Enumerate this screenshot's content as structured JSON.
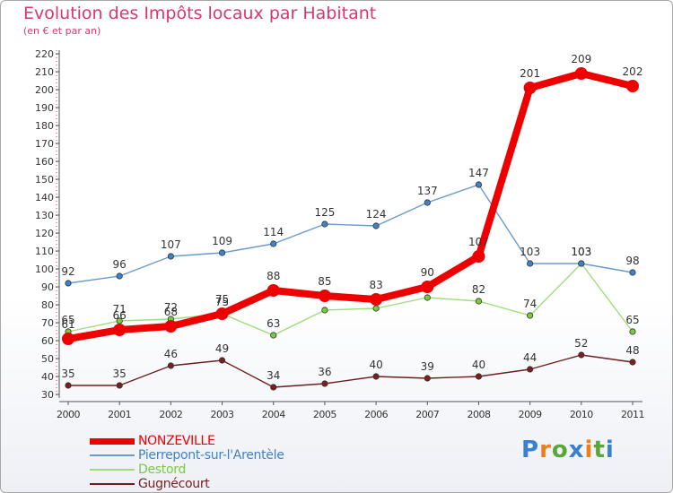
{
  "title": "Evolution des Impôts locaux par Habitant",
  "subtitle": "(en € et par an)",
  "logo": {
    "text": "Proxiti",
    "letter_colors": [
      "#3b7fd1",
      "#f07d1a",
      "#5aa63a",
      "#3b7fd1",
      "#f07d1a",
      "#5aa63a",
      "#3b7fd1"
    ]
  },
  "chart_data": {
    "type": "line",
    "title": "Evolution des Impôts locaux par Habitant",
    "subtitle": "(en € et par an)",
    "x": [
      "2000",
      "2001",
      "2002",
      "2003",
      "2004",
      "2005",
      "2006",
      "2007",
      "2008",
      "2009",
      "2010",
      "2011"
    ],
    "ylim": [
      30,
      220
    ],
    "yticks": [
      30,
      40,
      50,
      60,
      70,
      80,
      90,
      100,
      110,
      120,
      130,
      140,
      150,
      160,
      170,
      180,
      190,
      200,
      210,
      220
    ],
    "grid": false,
    "legend": "bottom-left",
    "series": [
      {
        "name": "Gugnécourt",
        "color": "#6b1f1f",
        "marker_color": "#7a2020",
        "values": [
          35,
          35,
          46,
          49,
          34,
          36,
          40,
          39,
          40,
          44,
          52,
          48
        ],
        "labels": [
          "35",
          "35",
          "46",
          "49",
          "34",
          "36",
          "40",
          "39",
          "40",
          "44",
          "52",
          "48"
        ]
      },
      {
        "name": "Destord",
        "color": "#9fdc7c",
        "marker_color": "#7acb3c",
        "values": [
          65,
          71,
          72,
          75,
          63,
          77,
          78,
          84,
          82,
          74,
          103,
          65
        ],
        "labels": [
          "65",
          "71",
          "72",
          "75",
          "63",
          "",
          "",
          "",
          "82",
          "74",
          "103",
          "65"
        ]
      },
      {
        "name": "Pierrepont-sur-l'Arentèle",
        "color": "#6a9bcc",
        "marker_color": "#3f82c7",
        "values": [
          92,
          96,
          107,
          109,
          114,
          125,
          124,
          137,
          147,
          103,
          103,
          98
        ],
        "labels": [
          "92",
          "96",
          "107",
          "109",
          "114",
          "125",
          "124",
          "137",
          "147",
          "103",
          "103",
          "98"
        ]
      },
      {
        "name": "NONZEVILLE",
        "color": "#ee0000",
        "marker_color": "#ee0000",
        "values": [
          61,
          66,
          68,
          75,
          88,
          85,
          83,
          90,
          107,
          201,
          209,
          202
        ],
        "labels": [
          "61",
          "66",
          "68",
          "75",
          "88",
          "85",
          "83",
          "90",
          "107",
          "201",
          "209",
          "202"
        ]
      }
    ]
  }
}
